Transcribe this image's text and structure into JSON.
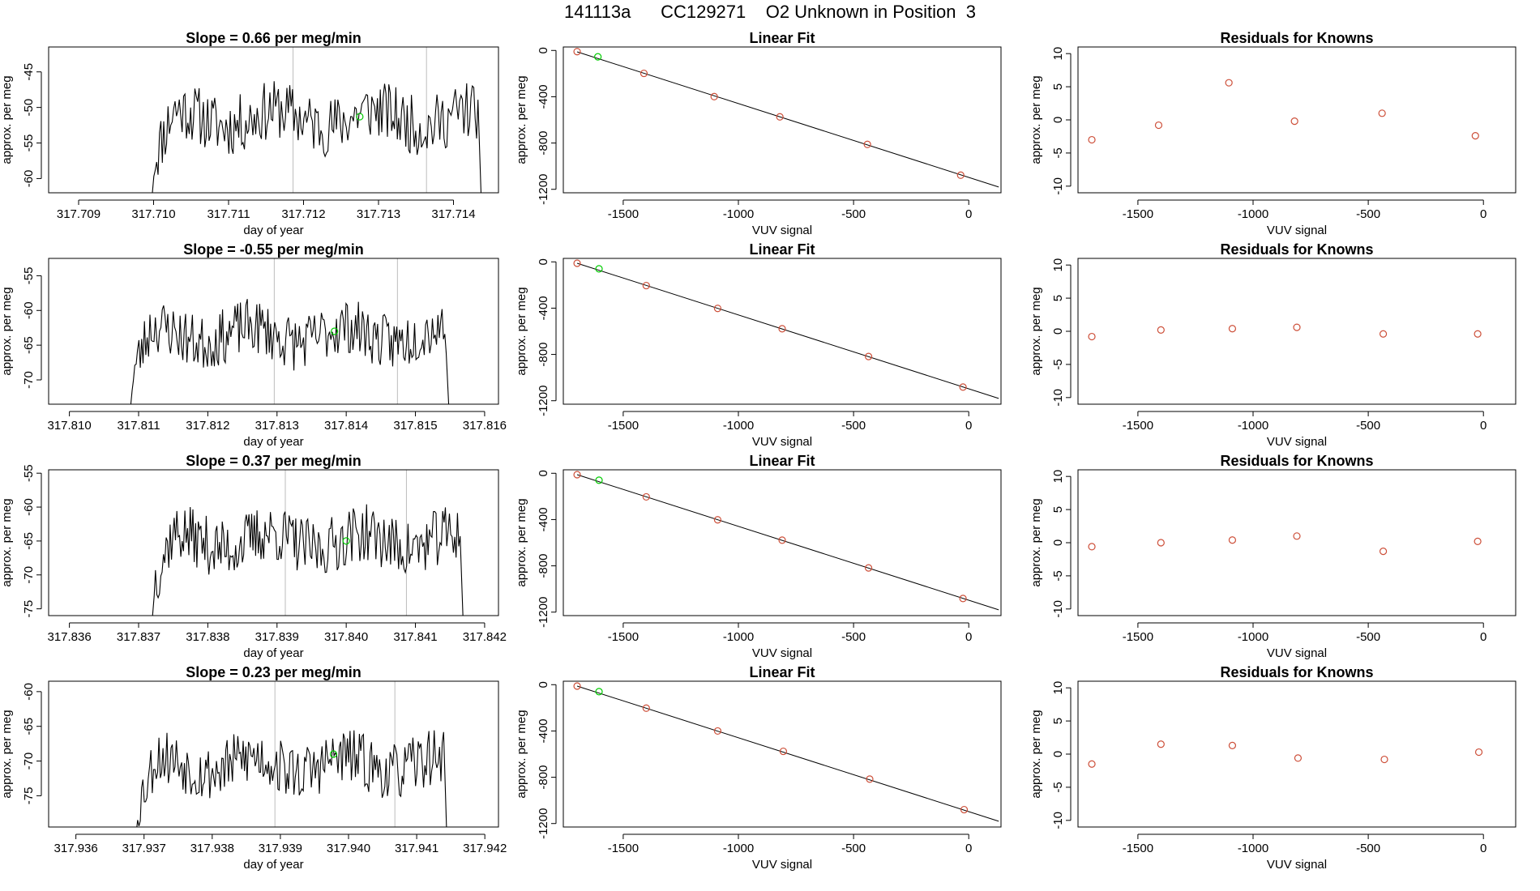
{
  "page_title": "141113a      CC129271    O2 Unknown in Position  3",
  "colors": {
    "trace": "#000000",
    "known": "#cd4f39",
    "unknown": "#00cc00",
    "marker": "#bdbdbd",
    "frame": "#000000"
  },
  "chart_data": [
    {
      "type": "line",
      "row": 0,
      "panel": "time-series",
      "title": "Slope =  0.66  per meg/min",
      "xlabel": "day of year",
      "ylabel": "approx. per meg",
      "xlim": [
        317.7086,
        317.7146
      ],
      "ylim": [
        -62,
        -41.5
      ],
      "xticks": [
        "317.709",
        "317.710",
        "317.711",
        "317.712",
        "317.713",
        "317.714"
      ],
      "xtick_values": [
        317.709,
        317.71,
        317.711,
        317.712,
        317.713,
        317.714
      ],
      "yticks": [
        "-60",
        "-55",
        "-50",
        "-45"
      ],
      "ytick_values": [
        -60,
        -55,
        -50,
        -45
      ],
      "t_start": 317.70995,
      "t_end": 317.71438,
      "y_mean": -51.5,
      "y_amp": 4.2,
      "seed": 11,
      "markers": [
        317.71186,
        317.71364
      ],
      "unknown_point": {
        "x": 317.71275,
        "y": -51.3
      }
    },
    {
      "type": "scatter",
      "row": 0,
      "panel": "linear-fit",
      "title": "Linear Fit",
      "xlabel": "VUV signal",
      "ylabel": "approx. per meg",
      "xlim": [
        -1760,
        140
      ],
      "ylim": [
        -1230,
        30
      ],
      "xticks": [
        "-1500",
        "-1000",
        "-500",
        "0"
      ],
      "xtick_values": [
        -1500,
        -1000,
        -500,
        0
      ],
      "yticks": [
        "0",
        "-400",
        "-800",
        "-1200"
      ],
      "ytick_values": [
        0,
        -400,
        -800,
        -1200
      ],
      "fit_line": {
        "x": [
          -1700,
          130
        ],
        "y": [
          -12,
          -1180
        ]
      },
      "knowns": [
        {
          "x": -1700,
          "y": -10
        },
        {
          "x": -1410,
          "y": -198
        },
        {
          "x": -1105,
          "y": -399
        },
        {
          "x": -820,
          "y": -574
        },
        {
          "x": -440,
          "y": -812
        },
        {
          "x": -35,
          "y": -1078
        }
      ],
      "unknown": {
        "x": -1610,
        "y": -55
      }
    },
    {
      "type": "scatter",
      "row": 0,
      "panel": "residuals",
      "title": "Residuals for Knowns",
      "xlabel": "VUV signal",
      "ylabel": "approx. per meg",
      "xlim": [
        -1760,
        140
      ],
      "ylim": [
        -11,
        11
      ],
      "xticks": [
        "-1500",
        "-1000",
        "-500",
        "0"
      ],
      "xtick_values": [
        -1500,
        -1000,
        -500,
        0
      ],
      "yticks": [
        "-10",
        "-5",
        "0",
        "5",
        "10"
      ],
      "ytick_values": [
        -10,
        -5,
        0,
        5,
        10
      ],
      "points": [
        {
          "x": -1700,
          "y": -3.0
        },
        {
          "x": -1410,
          "y": -0.8
        },
        {
          "x": -1105,
          "y": 5.6
        },
        {
          "x": -820,
          "y": -0.2
        },
        {
          "x": -440,
          "y": 1.0
        },
        {
          "x": -35,
          "y": -2.4
        }
      ]
    },
    {
      "type": "line",
      "row": 1,
      "panel": "time-series",
      "title": "Slope =  -0.55  per meg/min",
      "xlabel": "day of year",
      "ylabel": "approx. per meg",
      "xlim": [
        317.8097,
        317.8162
      ],
      "ylim": [
        -73.5,
        -52.5
      ],
      "xticks": [
        "317.810",
        "317.811",
        "317.812",
        "317.813",
        "317.814",
        "317.815",
        "317.816"
      ],
      "xtick_values": [
        317.81,
        317.811,
        317.812,
        317.813,
        317.814,
        317.815,
        317.816
      ],
      "yticks": [
        "-70",
        "-65",
        "-60",
        "-55"
      ],
      "ytick_values": [
        -70,
        -65,
        -60,
        -55
      ],
      "t_start": 317.81085,
      "t_end": 317.8155,
      "y_mean": -63.5,
      "y_amp": 4.0,
      "seed": 23,
      "markers": [
        317.81296,
        317.81474
      ],
      "unknown_point": {
        "x": 317.81383,
        "y": -63.0
      }
    },
    {
      "type": "scatter",
      "row": 1,
      "panel": "linear-fit",
      "title": "Linear Fit",
      "xlabel": "VUV signal",
      "ylabel": "approx. per meg",
      "xlim": [
        -1760,
        140
      ],
      "ylim": [
        -1230,
        30
      ],
      "xticks": [
        "-1500",
        "-1000",
        "-500",
        "0"
      ],
      "xtick_values": [
        -1500,
        -1000,
        -500,
        0
      ],
      "yticks": [
        "0",
        "-400",
        "-800",
        "-1200"
      ],
      "ytick_values": [
        0,
        -400,
        -800,
        -1200
      ],
      "fit_line": {
        "x": [
          -1700,
          130
        ],
        "y": [
          -12,
          -1180
        ]
      },
      "knowns": [
        {
          "x": -1700,
          "y": -12
        },
        {
          "x": -1400,
          "y": -205
        },
        {
          "x": -1090,
          "y": -402
        },
        {
          "x": -810,
          "y": -578
        },
        {
          "x": -435,
          "y": -818
        },
        {
          "x": -25,
          "y": -1082
        }
      ],
      "unknown": {
        "x": -1605,
        "y": -60
      }
    },
    {
      "type": "scatter",
      "row": 1,
      "panel": "residuals",
      "title": "Residuals for Knowns",
      "xlabel": "VUV signal",
      "ylabel": "approx. per meg",
      "xlim": [
        -1760,
        140
      ],
      "ylim": [
        -11,
        11
      ],
      "xticks": [
        "-1500",
        "-1000",
        "-500",
        "0"
      ],
      "xtick_values": [
        -1500,
        -1000,
        -500,
        0
      ],
      "yticks": [
        "-10",
        "-5",
        "0",
        "5",
        "10"
      ],
      "ytick_values": [
        -10,
        -5,
        0,
        5,
        10
      ],
      "points": [
        {
          "x": -1700,
          "y": -0.8
        },
        {
          "x": -1400,
          "y": 0.2
        },
        {
          "x": -1090,
          "y": 0.4
        },
        {
          "x": -810,
          "y": 0.6
        },
        {
          "x": -435,
          "y": -0.4
        },
        {
          "x": -25,
          "y": -0.4
        }
      ]
    },
    {
      "type": "line",
      "row": 2,
      "panel": "time-series",
      "title": "Slope =  0.37  per meg/min",
      "xlabel": "day of year",
      "ylabel": "approx. per meg",
      "xlim": [
        317.8357,
        317.8422
      ],
      "ylim": [
        -76,
        -54.5
      ],
      "xticks": [
        "317.836",
        "317.837",
        "317.838",
        "317.839",
        "317.840",
        "317.841",
        "317.842"
      ],
      "xtick_values": [
        317.836,
        317.837,
        317.838,
        317.839,
        317.84,
        317.841,
        317.842
      ],
      "yticks": [
        "-75",
        "-70",
        "-65",
        "-60",
        "-55"
      ],
      "ytick_values": [
        -75,
        -70,
        -65,
        -60,
        -55
      ],
      "t_start": 317.83717,
      "t_end": 317.8417,
      "y_mean": -65.0,
      "y_amp": 4.3,
      "seed": 37,
      "markers": [
        317.83912,
        317.84087
      ],
      "unknown_point": {
        "x": 317.84,
        "y": -65.0
      }
    },
    {
      "type": "scatter",
      "row": 2,
      "panel": "linear-fit",
      "title": "Linear Fit",
      "xlabel": "VUV signal",
      "ylabel": "approx. per meg",
      "xlim": [
        -1760,
        140
      ],
      "ylim": [
        -1230,
        30
      ],
      "xticks": [
        "-1500",
        "-1000",
        "-500",
        "0"
      ],
      "xtick_values": [
        -1500,
        -1000,
        -500,
        0
      ],
      "yticks": [
        "0",
        "-400",
        "-800",
        "-1200"
      ],
      "ytick_values": [
        0,
        -400,
        -800,
        -1200
      ],
      "fit_line": {
        "x": [
          -1700,
          130
        ],
        "y": [
          -12,
          -1180
        ]
      },
      "knowns": [
        {
          "x": -1700,
          "y": -12
        },
        {
          "x": -1400,
          "y": -204
        },
        {
          "x": -1090,
          "y": -402
        },
        {
          "x": -810,
          "y": -578
        },
        {
          "x": -435,
          "y": -818
        },
        {
          "x": -25,
          "y": -1082
        }
      ],
      "unknown": {
        "x": -1605,
        "y": -60
      }
    },
    {
      "type": "scatter",
      "row": 2,
      "panel": "residuals",
      "title": "Residuals for Knowns",
      "xlabel": "VUV signal",
      "ylabel": "approx. per meg",
      "xlim": [
        -1760,
        140
      ],
      "ylim": [
        -11,
        11
      ],
      "xticks": [
        "-1500",
        "-1000",
        "-500",
        "0"
      ],
      "xtick_values": [
        -1500,
        -1000,
        -500,
        0
      ],
      "yticks": [
        "-10",
        "-5",
        "0",
        "5",
        "10"
      ],
      "ytick_values": [
        -10,
        -5,
        0,
        5,
        10
      ],
      "points": [
        {
          "x": -1700,
          "y": -0.6
        },
        {
          "x": -1400,
          "y": 0.0
        },
        {
          "x": -1090,
          "y": 0.4
        },
        {
          "x": -810,
          "y": 1.0
        },
        {
          "x": -435,
          "y": -1.3
        },
        {
          "x": -25,
          "y": 0.2
        }
      ]
    },
    {
      "type": "line",
      "row": 3,
      "panel": "time-series",
      "title": "Slope =  0.23  per meg/min",
      "xlabel": "day of year",
      "ylabel": "approx. per meg",
      "xlim": [
        317.9356,
        317.9422
      ],
      "ylim": [
        -79.5,
        -58.5
      ],
      "xticks": [
        "317.936",
        "317.937",
        "317.938",
        "317.939",
        "317.940",
        "317.941",
        "317.942"
      ],
      "xtick_values": [
        317.936,
        317.937,
        317.938,
        317.939,
        317.94,
        317.941,
        317.942
      ],
      "yticks": [
        "-75",
        "-70",
        "-65",
        "-60"
      ],
      "ytick_values": [
        -75,
        -70,
        -65,
        -60
      ],
      "t_start": 317.93685,
      "t_end": 317.94145,
      "y_mean": -70.5,
      "y_amp": 4.1,
      "seed": 53,
      "markers": [
        317.93892,
        317.94068
      ],
      "unknown_point": {
        "x": 317.93978,
        "y": -69.0
      }
    },
    {
      "type": "scatter",
      "row": 3,
      "panel": "linear-fit",
      "title": "Linear Fit",
      "xlabel": "VUV signal",
      "ylabel": "approx. per meg",
      "xlim": [
        -1760,
        140
      ],
      "ylim": [
        -1230,
        30
      ],
      "xticks": [
        "-1500",
        "-1000",
        "-500",
        "0"
      ],
      "xtick_values": [
        -1500,
        -1000,
        -500,
        0
      ],
      "yticks": [
        "0",
        "-400",
        "-800",
        "-1200"
      ],
      "ytick_values": [
        0,
        -400,
        -800,
        -1200
      ],
      "fit_line": {
        "x": [
          -1700,
          130
        ],
        "y": [
          -12,
          -1180
        ]
      },
      "knowns": [
        {
          "x": -1700,
          "y": -12
        },
        {
          "x": -1400,
          "y": -203
        },
        {
          "x": -1090,
          "y": -400
        },
        {
          "x": -805,
          "y": -576
        },
        {
          "x": -430,
          "y": -816
        },
        {
          "x": -20,
          "y": -1080
        }
      ],
      "unknown": {
        "x": -1605,
        "y": -60
      }
    },
    {
      "type": "scatter",
      "row": 3,
      "panel": "residuals",
      "title": "Residuals for Knowns",
      "xlabel": "VUV signal",
      "ylabel": "approx. per meg",
      "xlim": [
        -1760,
        140
      ],
      "ylim": [
        -11,
        11
      ],
      "xticks": [
        "-1500",
        "-1000",
        "-500",
        "0"
      ],
      "xtick_values": [
        -1500,
        -1000,
        -500,
        0
      ],
      "yticks": [
        "-10",
        "-5",
        "0",
        "5",
        "10"
      ],
      "ytick_values": [
        -10,
        -5,
        0,
        5,
        10
      ],
      "points": [
        {
          "x": -1700,
          "y": -1.5
        },
        {
          "x": -1400,
          "y": 1.5
        },
        {
          "x": -1090,
          "y": 1.3
        },
        {
          "x": -805,
          "y": -0.6
        },
        {
          "x": -430,
          "y": -0.8
        },
        {
          "x": -20,
          "y": 0.3
        }
      ]
    }
  ]
}
